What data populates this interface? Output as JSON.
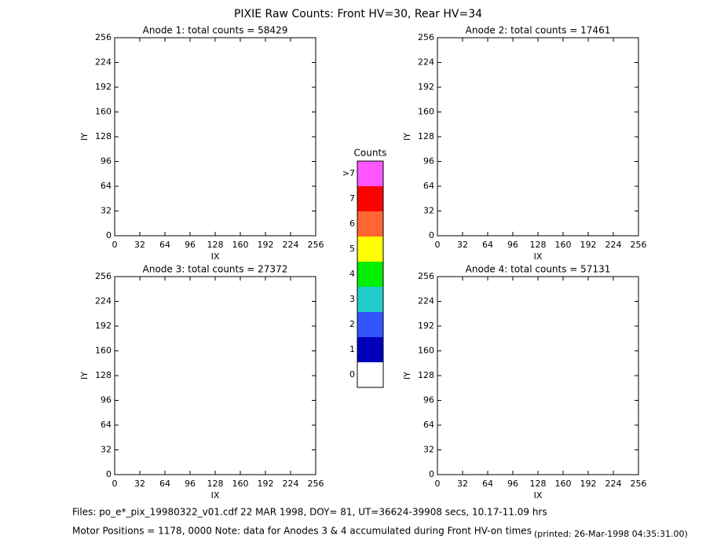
{
  "title": "PIXIE Raw Counts:  Front HV=30, Rear HV=34",
  "chart_data": [
    {
      "type": "heatmap",
      "title": "Anode 1: total counts = 58429",
      "xlabel": "IX",
      "ylabel": "IY",
      "xlim": [
        0,
        256
      ],
      "ylim": [
        0,
        256
      ],
      "xticks": [
        0,
        32,
        64,
        96,
        128,
        160,
        192,
        224,
        256
      ],
      "yticks": [
        0,
        32,
        64,
        96,
        128,
        160,
        192,
        224,
        256
      ]
    },
    {
      "type": "heatmap",
      "title": "Anode 2: total counts = 17461",
      "xlabel": "IX",
      "ylabel": "IY",
      "xlim": [
        0,
        256
      ],
      "ylim": [
        0,
        256
      ],
      "xticks": [
        0,
        32,
        64,
        96,
        128,
        160,
        192,
        224,
        256
      ],
      "yticks": [
        0,
        32,
        64,
        96,
        128,
        160,
        192,
        224,
        256
      ]
    },
    {
      "type": "heatmap",
      "title": "Anode 3: total counts = 27372",
      "xlabel": "IX",
      "ylabel": "IY",
      "xlim": [
        0,
        256
      ],
      "ylim": [
        0,
        256
      ],
      "xticks": [
        0,
        32,
        64,
        96,
        128,
        160,
        192,
        224,
        256
      ],
      "yticks": [
        0,
        32,
        64,
        96,
        128,
        160,
        192,
        224,
        256
      ]
    },
    {
      "type": "heatmap",
      "title": "Anode 4: total counts = 57131",
      "xlabel": "IX",
      "ylabel": "IY",
      "xlim": [
        0,
        256
      ],
      "ylim": [
        0,
        256
      ],
      "xticks": [
        0,
        32,
        64,
        96,
        128,
        160,
        192,
        224,
        256
      ],
      "yticks": [
        0,
        32,
        64,
        96,
        128,
        160,
        192,
        224,
        256
      ]
    }
  ],
  "colorbar": {
    "title": "Counts",
    "labels": [
      0,
      1,
      2,
      3,
      4,
      5,
      6,
      7,
      ">7"
    ],
    "colors": [
      "#ffffff",
      "#0000bb",
      "#3355ff",
      "#22cccc",
      "#00ee00",
      "#ffff00",
      "#ff6633",
      "#ff0000",
      "#ff55ff"
    ]
  },
  "footer": {
    "files": "Files: po_e*_pix_19980322_v01.cdf    22 MAR 1998, DOY= 81, UT=36624-39908 secs, 10.17-11.09 hrs",
    "motor": "Motor Positions = 1178, 0000    Note: data for Anodes 3 & 4 accumulated during Front HV-on times",
    "printed": "(printed: 26-Mar-1998 04:35:31.00)"
  }
}
